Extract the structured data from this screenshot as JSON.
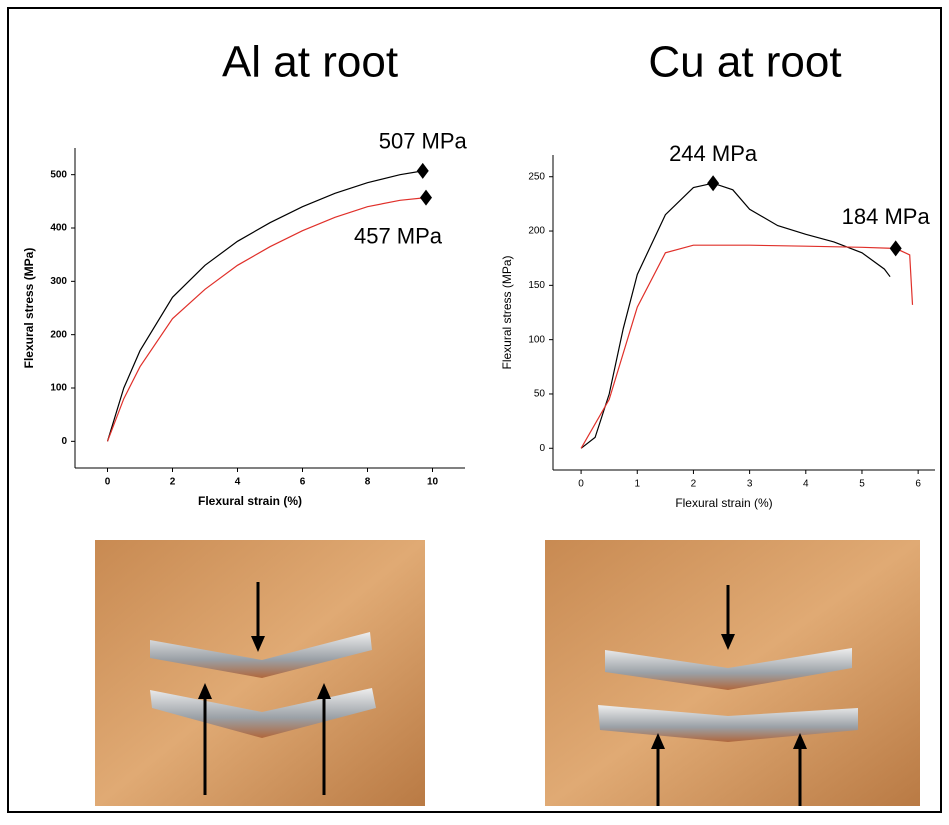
{
  "chart_data": [
    {
      "type": "line",
      "title": "Al at root",
      "xlabel": "Flexural strain (%)",
      "ylabel": "Flexural stress (MPa)",
      "xlim": [
        -1,
        11
      ],
      "ylim": [
        -50,
        550
      ],
      "xticks": [
        0,
        2,
        4,
        6,
        8,
        10
      ],
      "yticks": [
        0,
        100,
        200,
        300,
        400,
        500
      ],
      "series": [
        {
          "color": "#000000",
          "x": [
            0,
            0.5,
            1,
            2,
            3,
            4,
            5,
            6,
            7,
            8,
            9,
            9.7
          ],
          "values": [
            0,
            100,
            170,
            270,
            330,
            375,
            410,
            440,
            465,
            485,
            500,
            507
          ]
        },
        {
          "color": "#e0302a",
          "x": [
            0,
            0.5,
            1,
            2,
            3,
            4,
            5,
            6,
            7,
            8,
            9,
            9.8
          ],
          "values": [
            0,
            80,
            140,
            230,
            285,
            330,
            365,
            395,
            420,
            440,
            452,
            457
          ]
        }
      ],
      "peaks": [
        {
          "x": 9.7,
          "value": 507,
          "label": "507 MPa"
        },
        {
          "x": 9.8,
          "value": 457,
          "label": "457 MPa"
        }
      ]
    },
    {
      "type": "line",
      "title": "Cu at root",
      "xlabel": "Flexural strain (%)",
      "ylabel": "Flexural stress (MPa)",
      "xlim": [
        -0.5,
        6.3
      ],
      "ylim": [
        -20,
        270
      ],
      "xticks": [
        0,
        1,
        2,
        3,
        4,
        5,
        6
      ],
      "yticks": [
        0,
        50,
        100,
        150,
        200,
        250
      ],
      "series": [
        {
          "color": "#000000",
          "x": [
            0,
            0.25,
            0.5,
            0.75,
            1,
            1.5,
            2,
            2.35,
            2.7,
            3,
            3.5,
            4,
            4.5,
            5,
            5.4,
            5.5
          ],
          "values": [
            0,
            10,
            50,
            110,
            160,
            215,
            240,
            244,
            238,
            220,
            205,
            197,
            190,
            180,
            165,
            158
          ]
        },
        {
          "color": "#e0302a",
          "x": [
            0,
            0.5,
            1,
            1.5,
            2,
            3,
            4,
            5,
            5.6,
            5.85,
            5.9
          ],
          "values": [
            0,
            45,
            130,
            180,
            187,
            187,
            186,
            185,
            184,
            178,
            132
          ]
        }
      ],
      "peaks": [
        {
          "x": 2.35,
          "value": 244,
          "label": "244 MPa"
        },
        {
          "x": 5.6,
          "value": 184,
          "label": "184 MPa"
        }
      ]
    }
  ]
}
